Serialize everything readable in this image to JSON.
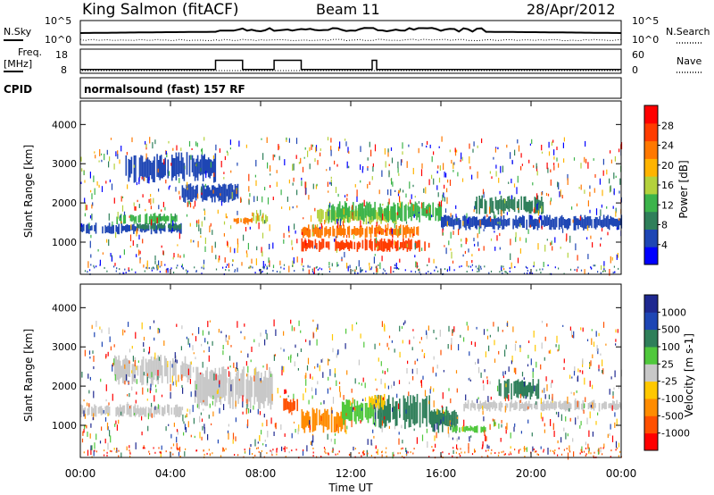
{
  "header": {
    "station": "King Salmon (fitACF)",
    "beam": "Beam 11",
    "date": "28/Apr/2012"
  },
  "noise_panel": {
    "left_label": "N.Sky",
    "right_label": "N.Search",
    "left_ticks": [
      "10^5",
      "10^0"
    ],
    "right_ticks": [
      "10^5",
      "10^0"
    ]
  },
  "freq_panel": {
    "left_label_1": "Freq.",
    "left_label_2": "[MHz]",
    "right_label": "Nave",
    "left_ticks": [
      "18",
      "8"
    ],
    "right_ticks": [
      "60",
      "0"
    ],
    "freq_steps": [
      [
        0,
        10.5
      ],
      [
        6.0,
        16.5
      ],
      [
        7.2,
        10.5
      ],
      [
        8.6,
        16.5
      ],
      [
        9.8,
        10.5
      ],
      [
        12.95,
        16.5
      ],
      [
        13.15,
        10.5
      ],
      [
        24,
        10.5
      ]
    ]
  },
  "cpid": {
    "label": "CPID",
    "program": "normalsound (fast) 157 RF"
  },
  "chart_data": [
    {
      "type": "heatmap",
      "name_panel": "power",
      "ylabel": "Slant Range [km]",
      "yticks": [
        "4000",
        "3000",
        "2000",
        "1000"
      ],
      "ylim": [
        180,
        4600
      ],
      "xlim": [
        0,
        24
      ],
      "colorbar_label": "Power [dB]",
      "colorbar_ticks": [
        "28",
        "24",
        "20",
        "16",
        "12",
        "8",
        "4"
      ],
      "colorbar_colors": [
        "#0000ff",
        "#1e46b4",
        "#2f7f5a",
        "#3cb44b",
        "#b4d23c",
        "#ffb400",
        "#ff7800",
        "#ff3c00",
        "#ff0000"
      ],
      "bands": [
        {
          "t0": 0.0,
          "t1": 4.5,
          "r0": 1200,
          "r1": 1500,
          "color": "#1e46b4"
        },
        {
          "t0": 1.6,
          "t1": 4.3,
          "r0": 1450,
          "r1": 1750,
          "color": "#3cb44b"
        },
        {
          "t0": 2.5,
          "t1": 4.5,
          "r0": 1300,
          "r1": 1500,
          "color": "#2f7f5a"
        },
        {
          "t0": 6.8,
          "t1": 7.6,
          "r0": 1450,
          "r1": 1650,
          "color": "#ff7800"
        },
        {
          "t0": 7.6,
          "t1": 8.3,
          "r0": 1450,
          "r1": 1750,
          "color": "#b4d23c"
        },
        {
          "t0": 9.8,
          "t1": 15.5,
          "r0": 750,
          "r1": 1100,
          "color": "#ff3c00"
        },
        {
          "t0": 9.8,
          "t1": 15.0,
          "r0": 1100,
          "r1": 1450,
          "color": "#ff7800"
        },
        {
          "t0": 10.5,
          "t1": 14.0,
          "r0": 1450,
          "r1": 1900,
          "color": "#b4d23c"
        },
        {
          "t0": 11.0,
          "t1": 16.0,
          "r0": 1500,
          "r1": 2050,
          "color": "#3cb44b"
        },
        {
          "t0": 16.0,
          "t1": 24.0,
          "r0": 1300,
          "r1": 1700,
          "color": "#1e46b4"
        },
        {
          "t0": 4.5,
          "t1": 7.0,
          "r0": 2000,
          "r1": 2500,
          "color": "#1e46b4"
        },
        {
          "t0": 17.5,
          "t1": 20.5,
          "r0": 1700,
          "r1": 2200,
          "color": "#2f7f5a"
        },
        {
          "t0": 2.0,
          "t1": 6.0,
          "r0": 2500,
          "r1": 3300,
          "color": "#1e46b4"
        }
      ]
    },
    {
      "type": "heatmap",
      "name_panel": "velocity",
      "ylabel": "Slant Range [km]",
      "yticks": [
        "4000",
        "3000",
        "2000",
        "1000"
      ],
      "ylim": [
        180,
        4600
      ],
      "xlim": [
        0,
        24
      ],
      "xticks": [
        "00:00",
        "04:00",
        "08:00",
        "12:00",
        "16:00",
        "20:00",
        "00:00"
      ],
      "xlabel": "Time UT",
      "colorbar_label": "Velocity [m s-1]",
      "colorbar_ticks": [
        "1000",
        "500",
        "100",
        "25",
        "-25",
        "-100",
        "-500",
        "-1000"
      ],
      "colorbar_colors": [
        "#ff0000",
        "#ff5000",
        "#ff8c00",
        "#ffc800",
        "#c8c8c8",
        "#50c83c",
        "#2f7f5a",
        "#1e46b4",
        "#1e2890"
      ],
      "bands": [
        {
          "t0": 0.0,
          "t1": 4.5,
          "r0": 1200,
          "r1": 1550,
          "color": "#c8c8c8"
        },
        {
          "t0": 1.5,
          "t1": 5.0,
          "r0": 2000,
          "r1": 2800,
          "color": "#c8c8c8"
        },
        {
          "t0": 5.0,
          "t1": 8.5,
          "r0": 1400,
          "r1": 2500,
          "color": "#c8c8c8"
        },
        {
          "t0": 9.0,
          "t1": 9.7,
          "r0": 1300,
          "r1": 1700,
          "color": "#ff5000"
        },
        {
          "t0": 9.8,
          "t1": 11.8,
          "r0": 800,
          "r1": 1450,
          "color": "#ff8c00"
        },
        {
          "t0": 11.6,
          "t1": 13.0,
          "r0": 1000,
          "r1": 1700,
          "color": "#50c83c"
        },
        {
          "t0": 13.0,
          "t1": 15.5,
          "r0": 900,
          "r1": 1800,
          "color": "#2f7f5a"
        },
        {
          "t0": 12.8,
          "t1": 13.5,
          "r0": 1400,
          "r1": 1800,
          "color": "#ffc800"
        },
        {
          "t0": 15.5,
          "t1": 16.7,
          "r0": 800,
          "r1": 1500,
          "color": "#2f7f5a"
        },
        {
          "t0": 16.5,
          "t1": 18.0,
          "r0": 800,
          "r1": 1000,
          "color": "#50c83c"
        },
        {
          "t0": 17.0,
          "t1": 24.0,
          "r0": 1350,
          "r1": 1650,
          "color": "#c8c8c8"
        },
        {
          "t0": 18.5,
          "t1": 20.3,
          "r0": 1650,
          "r1": 2200,
          "color": "#2f7f5a"
        }
      ]
    }
  ]
}
